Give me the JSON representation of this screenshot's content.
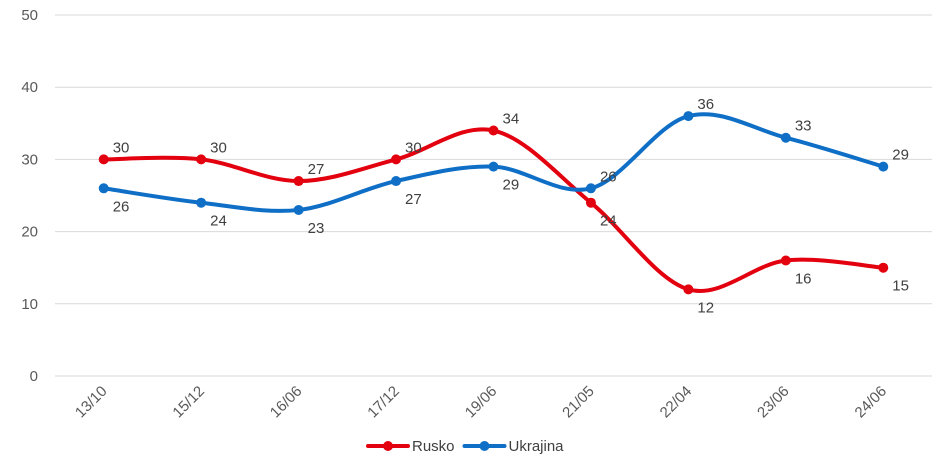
{
  "chart_data": {
    "type": "line",
    "title": "",
    "xlabel": "",
    "ylabel": "",
    "ylim": [
      0,
      50
    ],
    "yticks": [
      0,
      10,
      20,
      30,
      40,
      50
    ],
    "grid": true,
    "smooth": true,
    "legend_position": "bottom",
    "categories": [
      "13/10",
      "15/12",
      "16/06",
      "17/12",
      "19/06",
      "21/05",
      "22/04",
      "23/06",
      "24/06"
    ],
    "series": [
      {
        "name": "Rusko",
        "color": "#e3000f",
        "values": [
          30,
          30,
          27,
          30,
          34,
          24,
          12,
          16,
          15
        ]
      },
      {
        "name": "Ukrajina",
        "color": "#0f6fc6",
        "values": [
          26,
          24,
          23,
          27,
          29,
          26,
          36,
          33,
          29
        ]
      }
    ]
  }
}
